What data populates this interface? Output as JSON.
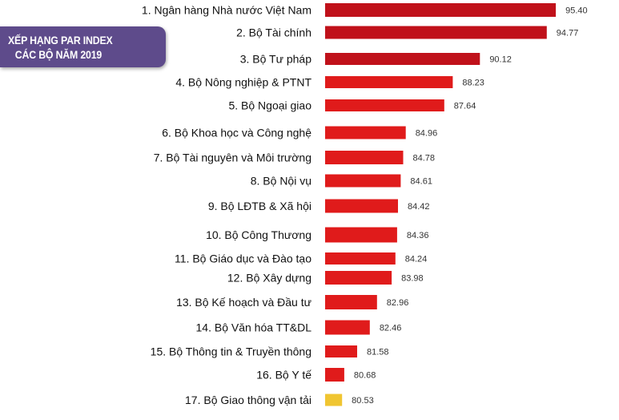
{
  "title_lines": [
    "XẾP HẠNG PAR INDEX",
    "CÁC BỘ NĂM 2019"
  ],
  "colors": {
    "bar_top": "#c0111a",
    "bar": "#e01b1b",
    "bar_last": "#f0c531",
    "title_bg": "#5e4b8b"
  },
  "chart_data": {
    "type": "bar",
    "orientation": "horizontal",
    "title": "XẾP HẠNG PAR INDEX CÁC BỘ NĂM 2019",
    "categories": [
      "1. Ngân hàng Nhà nước Việt Nam",
      "2. Bộ Tài chính",
      "3. Bộ Tư pháp",
      "4. Bộ Nông nghiệp & PTNT",
      "5. Bộ Ngoại giao",
      "6. Bộ Khoa học và Công nghệ",
      "7. Bộ Tài nguyên và Môi trường",
      "8. Bộ Nội vụ",
      "9. Bộ LĐTB & Xã hội",
      "10. Bộ Công Thương",
      "11. Bộ Giáo dục và Đào tạo",
      "12. Bộ Xây dựng",
      "13. Bộ Kế hoạch và Đầu tư",
      "14. Bộ Văn hóa TT&DL",
      "15. Bộ Thông tin & Truyền thông",
      "16. Bộ Y tế",
      "17. Bộ Giao thông vận tải"
    ],
    "values": [
      95.4,
      94.77,
      90.12,
      88.23,
      87.64,
      84.96,
      84.78,
      84.61,
      84.42,
      84.36,
      84.24,
      83.98,
      82.96,
      82.46,
      81.58,
      80.68,
      80.53
    ],
    "value_labels": [
      "95.40",
      "94.77",
      "90.12",
      "88.23",
      "87.64",
      "84.96",
      "84.78",
      "84.61",
      "84.42",
      "84.36",
      "84.24",
      "83.98",
      "82.96",
      "82.46",
      "81.58",
      "80.68",
      "80.53"
    ],
    "grid": false,
    "legend": "none"
  }
}
